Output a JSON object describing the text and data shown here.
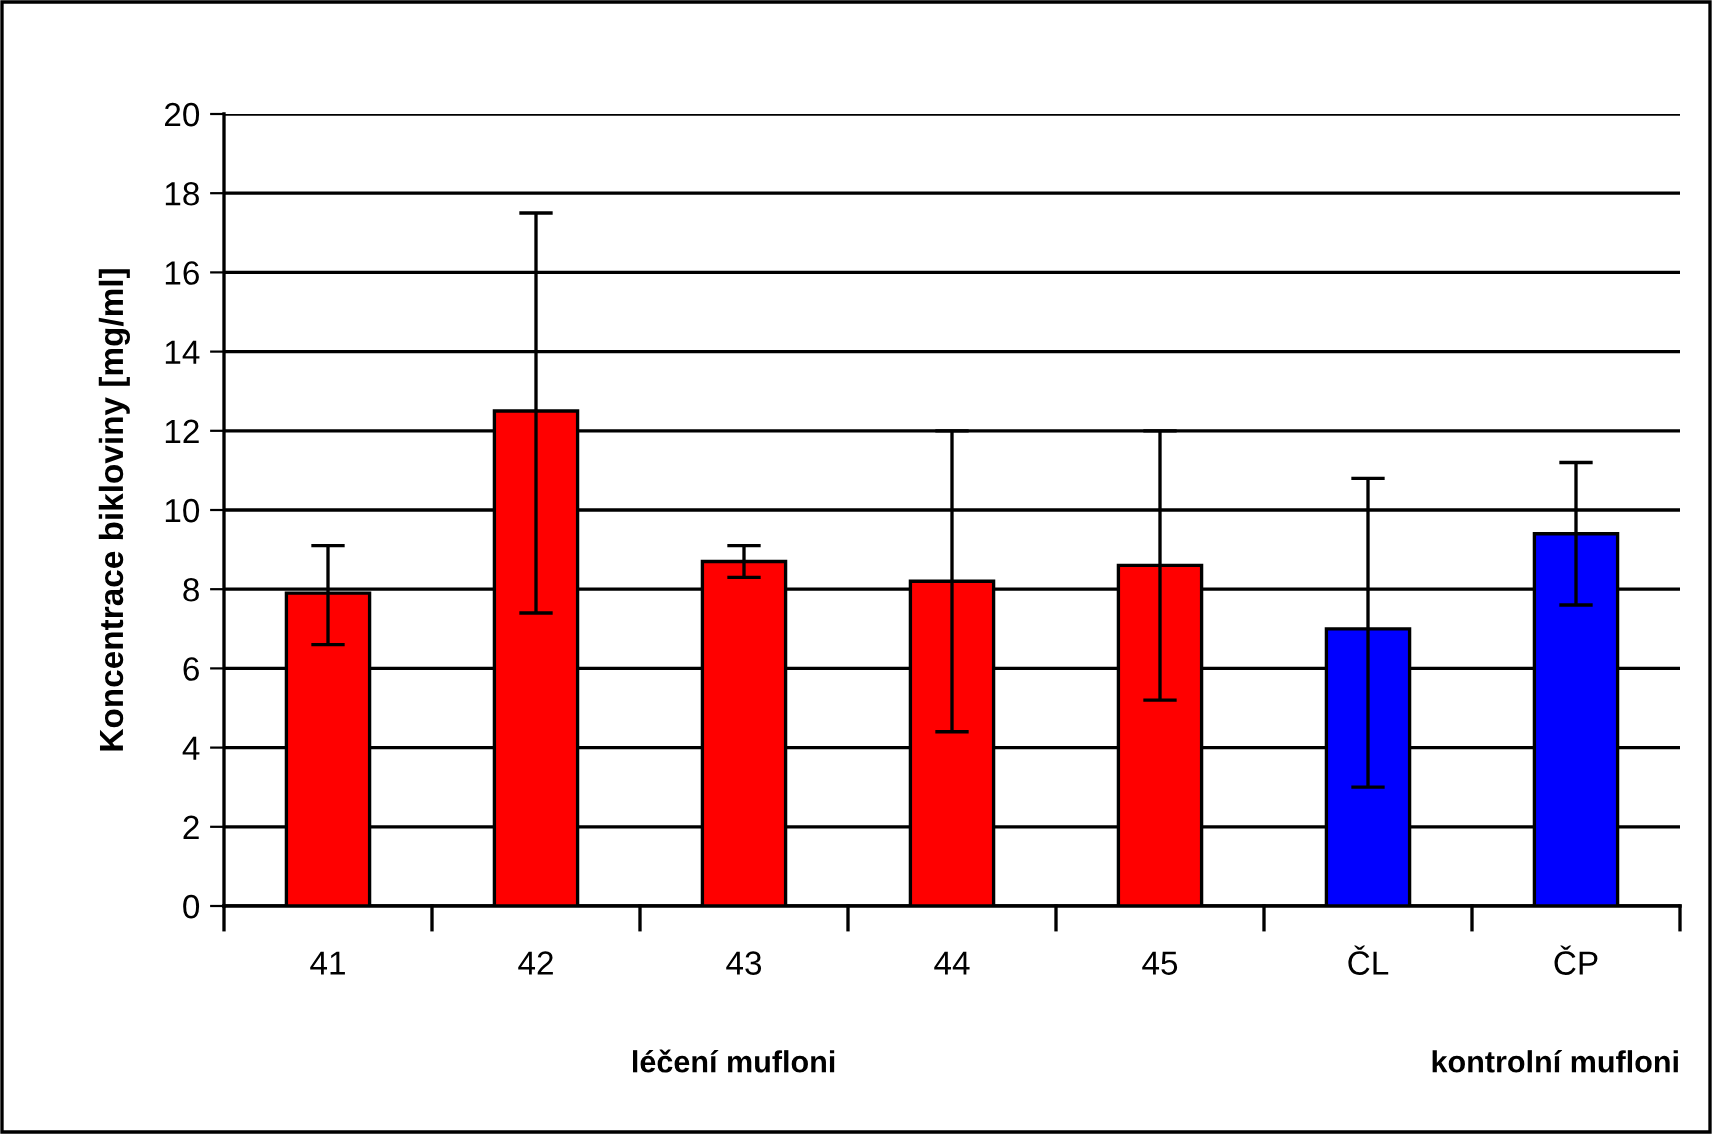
{
  "chart_data": {
    "type": "bar",
    "ylabel": "Koncentrace bikloviny [mg/ml]",
    "categories": [
      "41",
      "42",
      "43",
      "44",
      "45",
      "ČL",
      "ČP"
    ],
    "values": [
      7.9,
      12.5,
      8.7,
      8.2,
      8.6,
      7.0,
      9.4
    ],
    "colors": [
      "#ff0000",
      "#ff0000",
      "#ff0000",
      "#ff0000",
      "#ff0000",
      "#0000ff",
      "#0000ff"
    ],
    "errors": [
      [
        6.6,
        9.1
      ],
      [
        7.4,
        17.5
      ],
      [
        8.3,
        9.1
      ],
      [
        4.4,
        12.0
      ],
      [
        5.2,
        12.0
      ],
      [
        3.0,
        10.8
      ],
      [
        7.6,
        11.2
      ]
    ],
    "ylim": [
      0,
      20
    ],
    "yticks": [
      0,
      2,
      4,
      6,
      8,
      10,
      12,
      14,
      16,
      18,
      20
    ],
    "grid": "y",
    "legend": false,
    "annotations": [
      "léčení mufloni",
      "kontrolní mufloni"
    ]
  }
}
